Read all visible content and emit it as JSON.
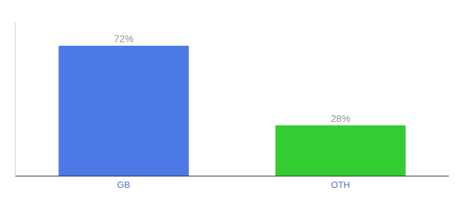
{
  "chart_data": {
    "type": "bar",
    "categories": [
      "GB",
      "OTH"
    ],
    "values": [
      72,
      28
    ],
    "value_labels": [
      "72%",
      "28%"
    ],
    "colors": [
      "#4d79e6",
      "#33cc33"
    ],
    "data_labels": true,
    "ylim": [
      0,
      85
    ],
    "tick_labels": "x"
  }
}
